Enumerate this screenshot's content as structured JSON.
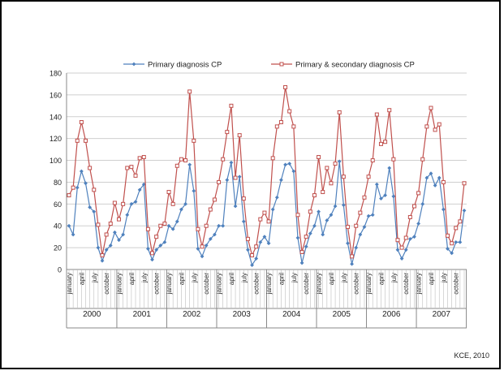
{
  "credit": "KCE, 2010",
  "chart_data": {
    "type": "line",
    "title": "",
    "xlabel": "",
    "ylabel": "",
    "ylim": [
      0,
      180
    ],
    "yticks": [
      0,
      20,
      40,
      60,
      80,
      100,
      120,
      140,
      160,
      180
    ],
    "grid": true,
    "legend_position": "top",
    "years": [
      "2000",
      "2001",
      "2002",
      "2003",
      "2004",
      "2005",
      "2006",
      "2007"
    ],
    "months": [
      "january",
      "april",
      "july",
      "october"
    ],
    "series": [
      {
        "name": "Primary diagnosis  CP",
        "color": "#4f81bd",
        "marker": "diamond",
        "values": [
          40,
          32,
          75,
          90,
          79,
          57,
          53,
          20,
          8,
          18,
          22,
          34,
          27,
          32,
          50,
          60,
          62,
          73,
          78,
          19,
          9,
          18,
          22,
          25,
          40,
          37,
          44,
          55,
          60,
          96,
          72,
          19,
          12,
          22,
          28,
          32,
          40,
          40,
          82,
          98,
          58,
          85,
          44,
          18,
          4,
          10,
          25,
          30,
          24,
          55,
          66,
          82,
          96,
          97,
          90,
          29,
          6,
          21,
          33,
          40,
          53,
          32,
          45,
          50,
          58,
          99,
          59,
          24,
          5,
          20,
          32,
          39,
          49,
          50,
          78,
          65,
          68,
          93,
          67,
          18,
          10,
          18,
          28,
          30,
          42,
          60,
          84,
          88,
          77,
          84,
          55,
          19,
          15,
          25,
          25,
          54
        ]
      },
      {
        "name": "Primary & secondary diagnosis  CP",
        "color": "#c0504d",
        "marker": "square",
        "values": [
          68,
          75,
          118,
          135,
          118,
          93,
          73,
          41,
          13,
          32,
          42,
          61,
          46,
          60,
          93,
          94,
          86,
          102,
          103,
          37,
          15,
          30,
          40,
          42,
          71,
          60,
          95,
          101,
          100,
          163,
          118,
          37,
          21,
          40,
          55,
          64,
          80,
          101,
          126,
          150,
          84,
          123,
          65,
          28,
          13,
          21,
          46,
          52,
          44,
          102,
          131,
          135,
          167,
          145,
          131,
          50,
          16,
          30,
          53,
          68,
          103,
          71,
          93,
          79,
          97,
          144,
          85,
          39,
          12,
          40,
          52,
          66,
          85,
          100,
          142,
          115,
          117,
          146,
          101,
          27,
          20,
          29,
          48,
          58,
          70,
          101,
          131,
          148,
          128,
          133,
          80,
          31,
          24,
          38,
          44,
          79
        ]
      }
    ]
  }
}
